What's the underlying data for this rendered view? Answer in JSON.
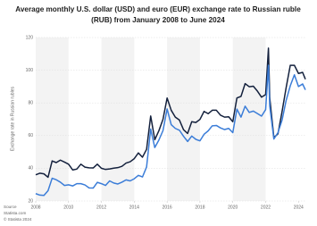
{
  "chart_data": {
    "type": "line",
    "title_lines": [
      "Average monthly U.S. dollar (USD) and euro (EUR) exchange rate to Russian ruble",
      "(RUB) from January 2008 to June 2024"
    ],
    "y_label": "Exchange rate in Russian rubles",
    "source_lines": [
      "Source",
      "Statista.com",
      "© Statista 2024"
    ],
    "x": [
      2008,
      2008.25,
      2008.5,
      2008.75,
      2009,
      2009.25,
      2009.5,
      2009.75,
      2010,
      2010.25,
      2010.5,
      2010.75,
      2011,
      2011.25,
      2011.5,
      2011.75,
      2012,
      2012.25,
      2012.5,
      2012.75,
      2013,
      2013.25,
      2013.5,
      2013.75,
      2014,
      2014.25,
      2014.5,
      2014.75,
      2015,
      2015.25,
      2015.5,
      2015.75,
      2016,
      2016.25,
      2016.5,
      2016.75,
      2017,
      2017.25,
      2017.5,
      2017.75,
      2018,
      2018.25,
      2018.5,
      2018.75,
      2019,
      2019.25,
      2019.5,
      2019.75,
      2020,
      2020.25,
      2020.5,
      2020.75,
      2021,
      2021.25,
      2021.5,
      2021.75,
      2022,
      2022.17,
      2022.25,
      2022.5,
      2022.75,
      2023,
      2023.25,
      2023.5,
      2023.75,
      2024,
      2024.25,
      2024.42
    ],
    "series": [
      {
        "color": "#14213d",
        "values": [
          36.0,
          37.0,
          36.6,
          34.5,
          44.5,
          43.5,
          45.0,
          43.8,
          42.5,
          39.0,
          39.5,
          42.5,
          40.7,
          40.3,
          40.2,
          42.5,
          40.0,
          39.3,
          39.6,
          40.1,
          40.4,
          41.2,
          43.2,
          44.0,
          45.9,
          49.4,
          46.8,
          51.6,
          72.0,
          57.5,
          63.0,
          70.0,
          83.0,
          75.5,
          71.3,
          69.5,
          63.6,
          61.3,
          68.5,
          68.0,
          69.9,
          74.8,
          73.4,
          75.5,
          75.5,
          72.5,
          71.3,
          71.5,
          68.5,
          83.0,
          84.0,
          91.8,
          89.9,
          90.2,
          87.2,
          83.5,
          85.1,
          113.5,
          83.0,
          58.8,
          61.1,
          74.7,
          89.5,
          103.0,
          103.0,
          98.0,
          98.7,
          94.5
        ]
      },
      {
        "color": "#3b7dd8",
        "values": [
          24.5,
          23.6,
          23.4,
          26.3,
          33.9,
          33.0,
          31.5,
          29.5,
          29.9,
          29.2,
          30.6,
          30.6,
          29.8,
          28.0,
          27.9,
          31.4,
          30.6,
          29.5,
          32.3,
          31.0,
          30.4,
          31.5,
          32.9,
          32.3,
          33.6,
          35.7,
          34.7,
          40.8,
          64.0,
          52.7,
          57.3,
          63.1,
          76.3,
          66.7,
          64.4,
          63.3,
          59.6,
          56.4,
          59.7,
          57.7,
          56.8,
          60.8,
          62.9,
          66.0,
          66.2,
          64.7,
          63.7,
          64.4,
          61.8,
          76.2,
          71.3,
          78.0,
          74.2,
          75.0,
          73.5,
          71.9,
          75.9,
          103.0,
          78.0,
          57.9,
          61.8,
          69.5,
          81.6,
          90.5,
          97.2,
          90.0,
          91.6,
          88.0
        ]
      }
    ],
    "xlim": [
      2008,
      2024.42
    ],
    "xticks": [
      2008,
      2010,
      2012,
      2014,
      2016,
      2018,
      2020,
      2022,
      2024
    ],
    "ylim": [
      20,
      120
    ],
    "yticks": [
      20,
      40,
      60,
      80,
      100,
      120
    ],
    "grid": true
  }
}
